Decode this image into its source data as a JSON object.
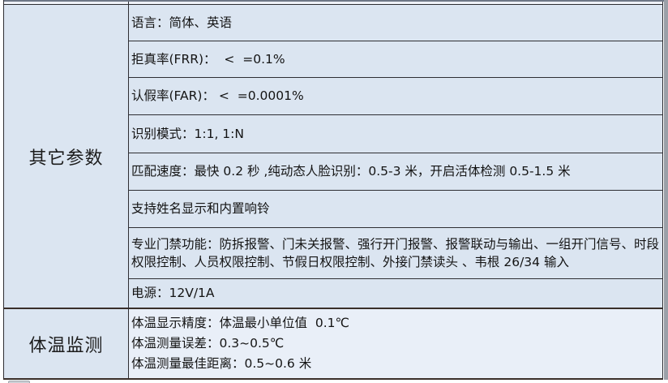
{
  "table": {
    "sections": [
      {
        "label": "其它参数",
        "rows": [
          "语言：简体、英语",
          "拒真率(FRR)：  <  =0.1%",
          "认假率(FAR)： <  =0.0001%",
          "识别模式：1:1, 1:N",
          "匹配速度：最快 0.2 秒 ,纯动态人脸识别：0.5-3 米，开启活体检测 0.5-1.5 米",
          "支持姓名显示和内置响铃",
          "专业门禁功能：防拆报警、门未关报警、强行开门报警、报警联动与输出、一组开门信号、时段权限控制、人员权限控制、节假日权限控制、外接门禁读头 、韦根 26/34 输入",
          "电源：12V/1A"
        ]
      },
      {
        "label": "体温监测",
        "lines": [
          "体温显示精度：体温最小单位值  0.1℃",
          "体温测量误差：0.3~0.5℃",
          "体温测量最佳距离：0.5~0.6 米"
        ]
      }
    ]
  },
  "colors": {
    "cell_blue": "#dbe5f1",
    "temp_bg": "#e9eff8",
    "border_dark": "#2e2e33",
    "border_bottom": "#3a2f2a",
    "text": "#141414",
    "shadow_grey": "#9aa0a8"
  }
}
